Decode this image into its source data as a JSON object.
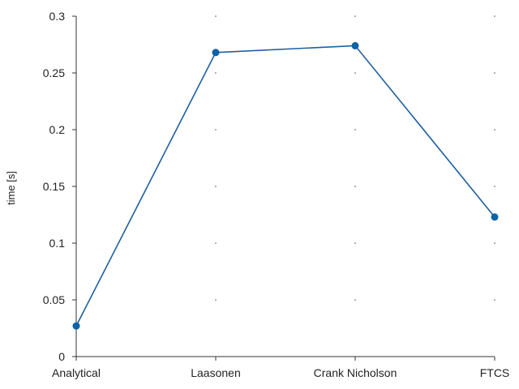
{
  "chart_data": {
    "type": "line",
    "title": "",
    "xlabel": "",
    "ylabel": "time [s]",
    "categories": [
      "Analytical",
      "Laasonen",
      "Crank Nicholson",
      "FTCS"
    ],
    "values": [
      0.027,
      0.268,
      0.274,
      0.123
    ],
    "ylim": [
      0,
      0.3
    ],
    "yticks": [
      0,
      0.05,
      0.1,
      0.15,
      0.2,
      0.25,
      0.3
    ],
    "ytick_labels": [
      "0",
      "0.05",
      "0.1",
      "0.15",
      "0.2",
      "0.25",
      "0.3"
    ],
    "grid": "dotted-minimal",
    "series_color": "#1f5f9f",
    "marker_color": "#0b63a8"
  }
}
